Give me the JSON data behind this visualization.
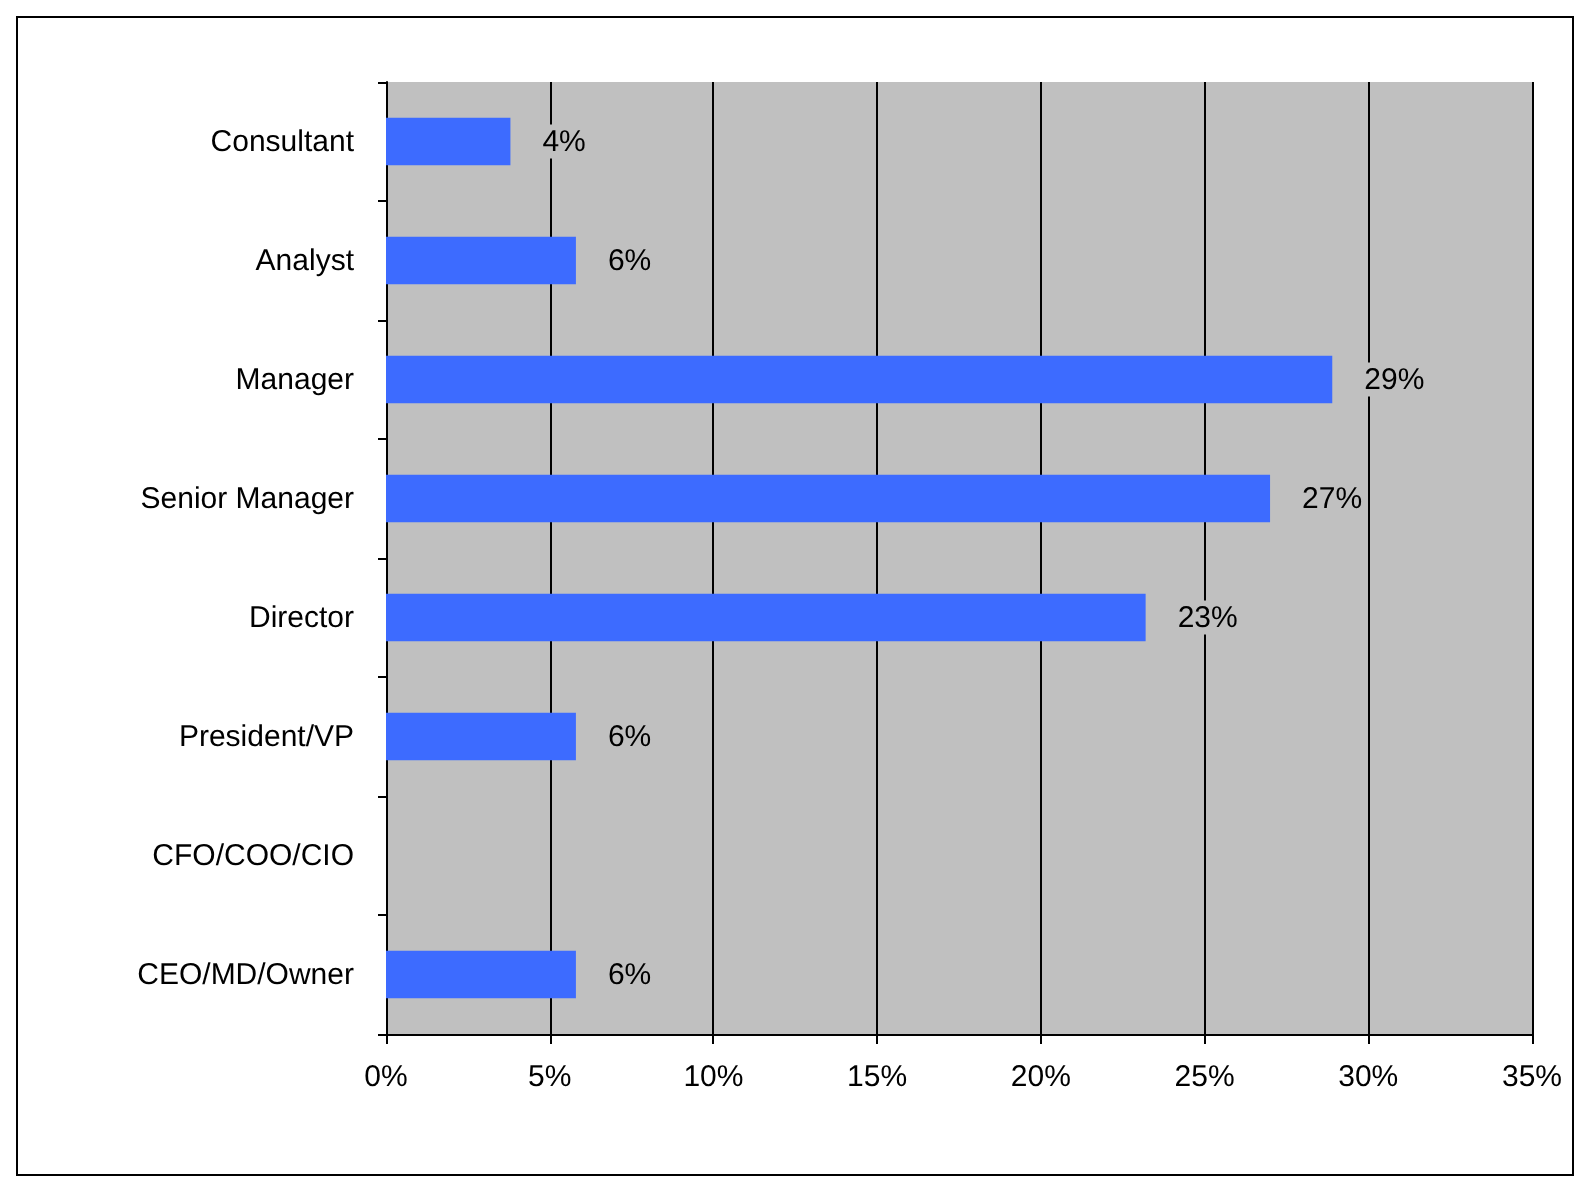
{
  "chart_data": {
    "type": "bar",
    "orientation": "horizontal",
    "categories": [
      "Consultant",
      "Analyst",
      "Manager",
      "Senior Manager",
      "Director",
      "President/VP",
      "CFO/COO/CIO",
      "CEO/MD/Owner"
    ],
    "values": [
      3.8,
      5.8,
      28.9,
      27,
      23.2,
      5.8,
      0,
      5.8
    ],
    "value_labels": [
      "4%",
      "6%",
      "29%",
      "27%",
      "23%",
      "6%",
      null,
      "6%"
    ],
    "color": "#3d6bff",
    "xlim": [
      0,
      35
    ],
    "xticks": [
      {
        "value": 0,
        "label": "0%"
      },
      {
        "value": 5,
        "label": "5%"
      },
      {
        "value": 10,
        "label": "10%"
      },
      {
        "value": 15,
        "label": "15%"
      },
      {
        "value": 20,
        "label": "20%"
      },
      {
        "value": 25,
        "label": "25%"
      },
      {
        "value": 30,
        "label": "30%"
      },
      {
        "value": 35,
        "label": "35%"
      }
    ],
    "grid": "x"
  }
}
